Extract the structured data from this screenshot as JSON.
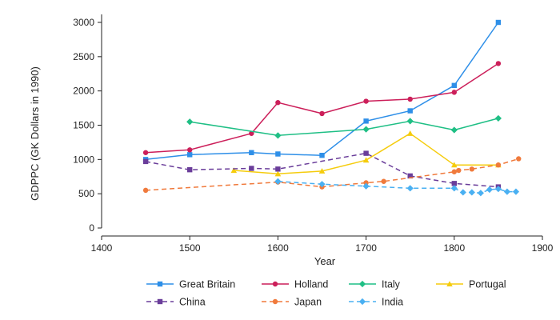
{
  "chart_data": {
    "type": "line",
    "xlabel": "Year",
    "ylabel": "GDPPC (GK Dollars in 1990)",
    "xlim": [
      1400,
      1900
    ],
    "ylim": [
      0,
      3000
    ],
    "xticks": [
      "1400",
      "1500",
      "1600",
      "1700",
      "1800",
      "1900"
    ],
    "yticks": [
      "0",
      "500",
      "1000",
      "1500",
      "2000",
      "2500",
      "3000"
    ],
    "grid": false,
    "legend_position": "bottom",
    "series": [
      {
        "name": "Great Britain",
        "color": "#2e8fe8",
        "dash": "solid",
        "marker": "square",
        "points": [
          [
            1450,
            1000
          ],
          [
            1500,
            1070
          ],
          [
            1570,
            1100
          ],
          [
            1600,
            1080
          ],
          [
            1650,
            1060
          ],
          [
            1700,
            1560
          ],
          [
            1750,
            1710
          ],
          [
            1800,
            2080
          ],
          [
            1850,
            3000
          ]
        ]
      },
      {
        "name": "Holland",
        "color": "#cc1f5a",
        "dash": "solid",
        "marker": "circle",
        "points": [
          [
            1450,
            1100
          ],
          [
            1500,
            1140
          ],
          [
            1570,
            1380
          ],
          [
            1600,
            1830
          ],
          [
            1650,
            1670
          ],
          [
            1700,
            1850
          ],
          [
            1750,
            1880
          ],
          [
            1800,
            1980
          ],
          [
            1850,
            2400
          ]
        ]
      },
      {
        "name": "Italy",
        "color": "#1fbf85",
        "dash": "solid",
        "marker": "diamond",
        "points": [
          [
            1500,
            1550
          ],
          [
            1600,
            1350
          ],
          [
            1700,
            1440
          ],
          [
            1750,
            1560
          ],
          [
            1800,
            1430
          ],
          [
            1850,
            1600
          ]
        ]
      },
      {
        "name": "Portugal",
        "color": "#f5cc0d",
        "dash": "solid",
        "marker": "triangle",
        "points": [
          [
            1550,
            840
          ],
          [
            1600,
            790
          ],
          [
            1650,
            830
          ],
          [
            1700,
            990
          ],
          [
            1750,
            1380
          ],
          [
            1800,
            920
          ],
          [
            1850,
            920
          ]
        ]
      },
      {
        "name": "China",
        "color": "#6a3d9a",
        "dash": "dash",
        "marker": "square",
        "points": [
          [
            1450,
            970
          ],
          [
            1500,
            850
          ],
          [
            1570,
            870
          ],
          [
            1600,
            860
          ],
          [
            1700,
            1090
          ],
          [
            1750,
            760
          ],
          [
            1800,
            650
          ],
          [
            1850,
            600
          ]
        ]
      },
      {
        "name": "Japan",
        "color": "#f07a3c",
        "dash": "dash",
        "marker": "circle",
        "points": [
          [
            1450,
            550
          ],
          [
            1600,
            670
          ],
          [
            1650,
            600
          ],
          [
            1700,
            660
          ],
          [
            1720,
            680
          ],
          [
            1800,
            820
          ],
          [
            1805,
            840
          ],
          [
            1820,
            860
          ],
          [
            1850,
            920
          ],
          [
            1873,
            1010
          ]
        ]
      },
      {
        "name": "India",
        "color": "#4ab0f2",
        "dash": "dash",
        "marker": "diamond",
        "points": [
          [
            1600,
            680
          ],
          [
            1650,
            640
          ],
          [
            1700,
            610
          ],
          [
            1750,
            580
          ],
          [
            1800,
            580
          ],
          [
            1810,
            520
          ],
          [
            1820,
            520
          ],
          [
            1830,
            510
          ],
          [
            1840,
            560
          ],
          [
            1850,
            570
          ],
          [
            1860,
            530
          ],
          [
            1870,
            530
          ]
        ]
      }
    ]
  }
}
